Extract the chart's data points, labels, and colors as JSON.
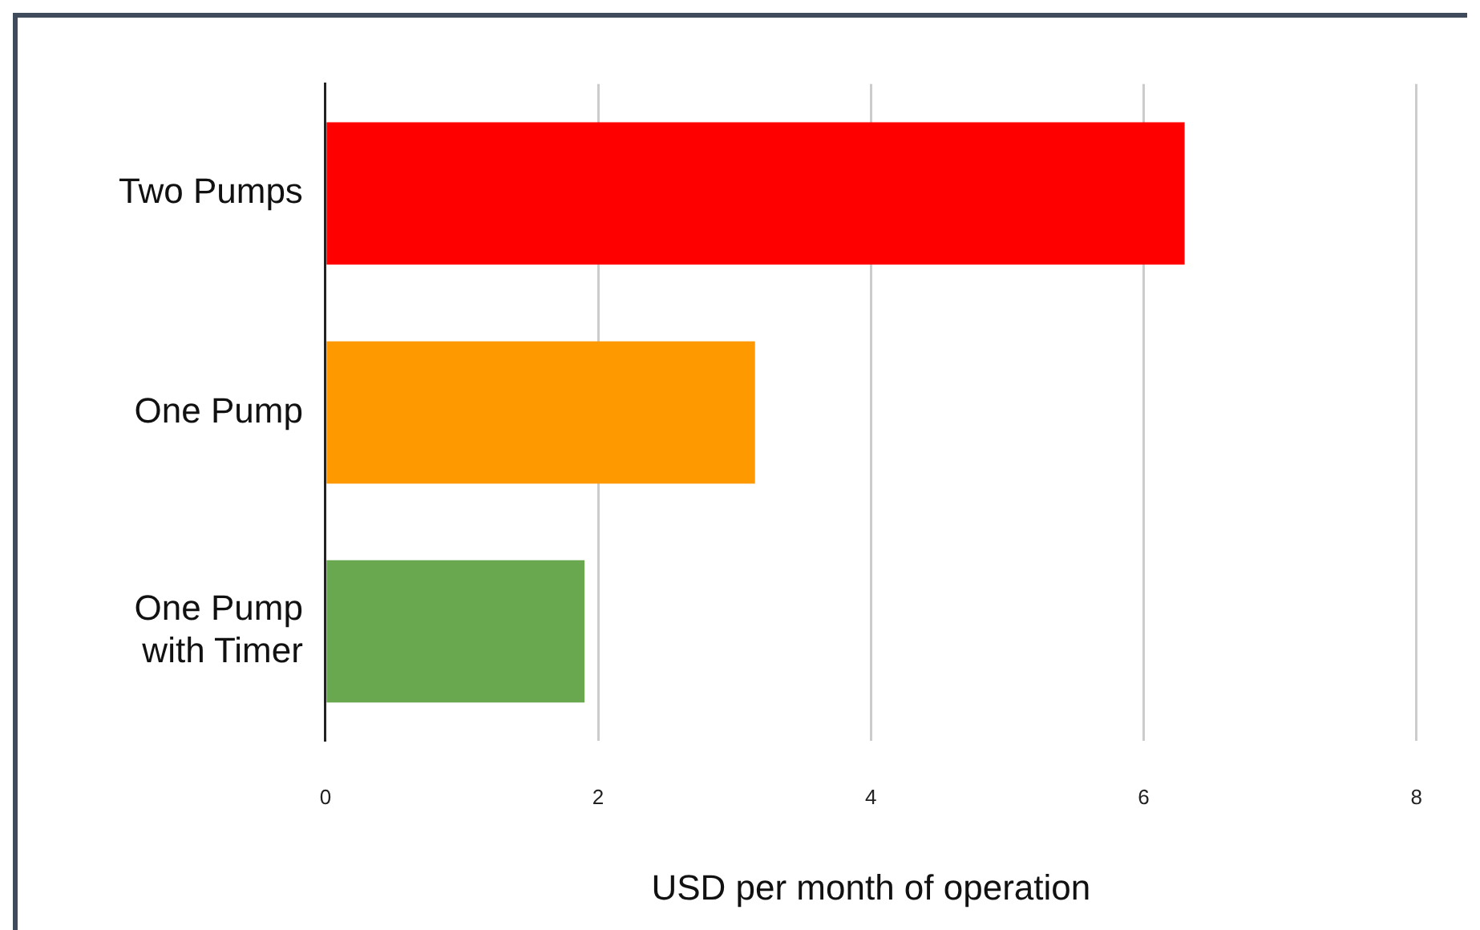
{
  "chart_data": {
    "type": "bar",
    "orientation": "horizontal",
    "xlabel": "USD per month of operation",
    "categories": [
      "Two Pumps",
      "One Pump",
      "One Pump\nwith Timer"
    ],
    "values": [
      6.3,
      3.15,
      1.9
    ],
    "colors": [
      "#ff0000",
      "#ff9900",
      "#6aa84f"
    ],
    "xlim": [
      0,
      8
    ],
    "xticks": [
      0,
      2,
      4,
      6,
      8
    ],
    "grid": "x",
    "legend": false
  }
}
